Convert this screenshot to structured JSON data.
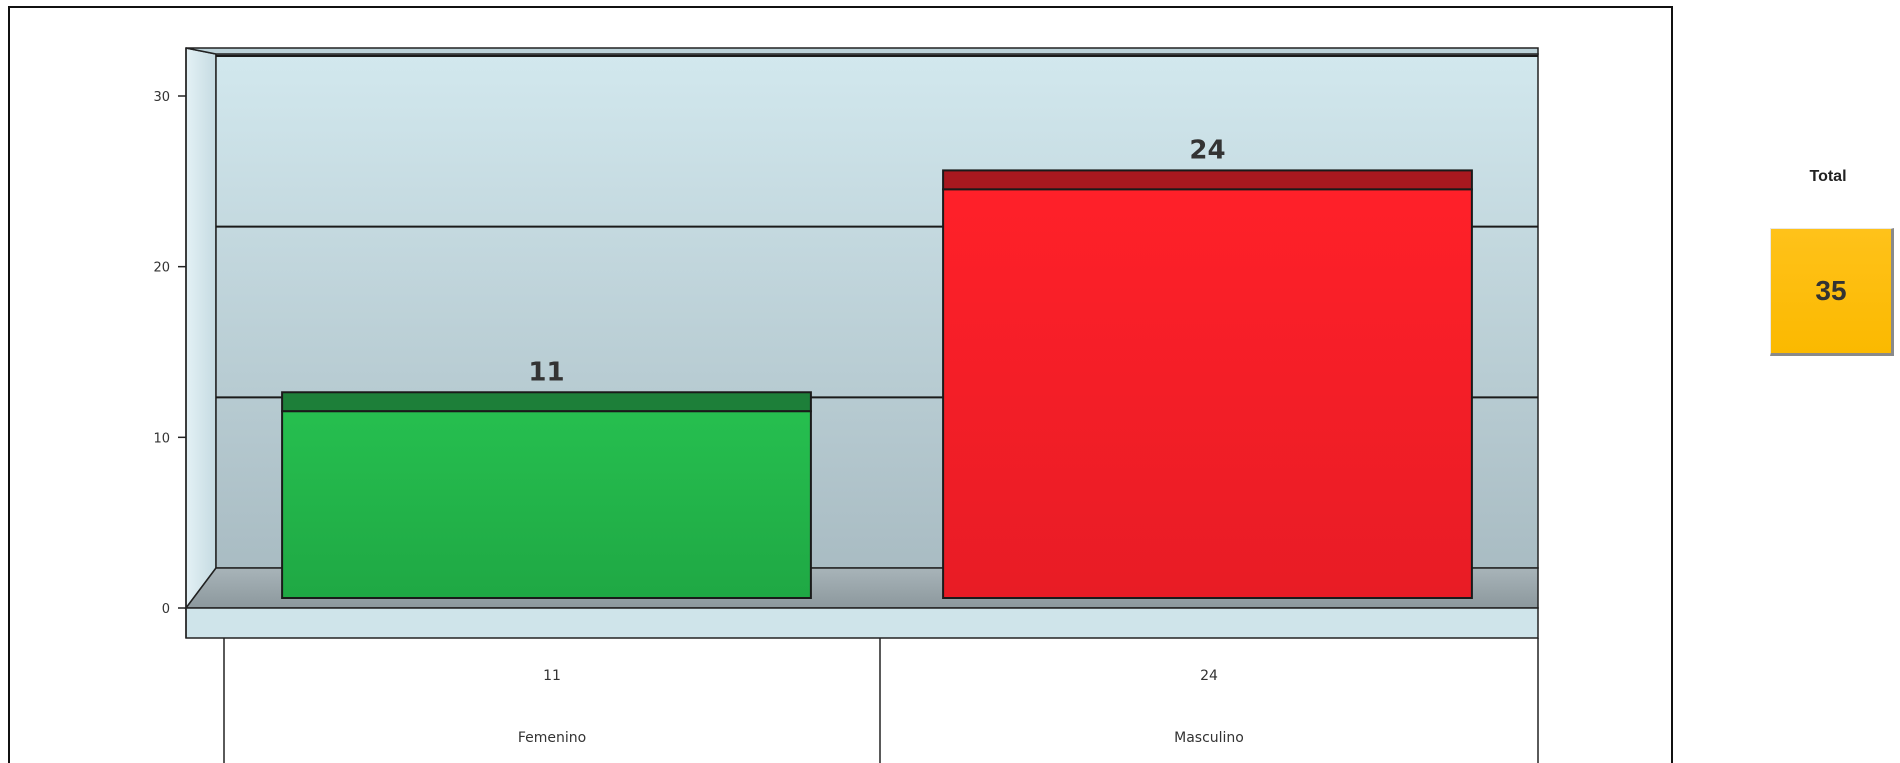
{
  "chart_data": {
    "type": "bar",
    "categories": [
      "Femenino",
      "Masculino"
    ],
    "values": [
      11,
      24
    ],
    "title": "",
    "xlabel": "",
    "ylabel": "",
    "ylim": [
      0,
      30
    ],
    "yticks": [
      0,
      10,
      20,
      30
    ],
    "grid": true,
    "data_labels": [
      "11",
      "24"
    ],
    "data_table": {
      "values_row": [
        "11",
        "24"
      ],
      "category_row": [
        "Femenino",
        "Masculino"
      ]
    },
    "colors": {
      "Femenino": "#22b84a",
      "Masculino": "#ff1f2a",
      "plot_background": "#cfe4ea"
    }
  },
  "total": {
    "label": "Total",
    "value": "35",
    "color": "#ffc21a"
  }
}
